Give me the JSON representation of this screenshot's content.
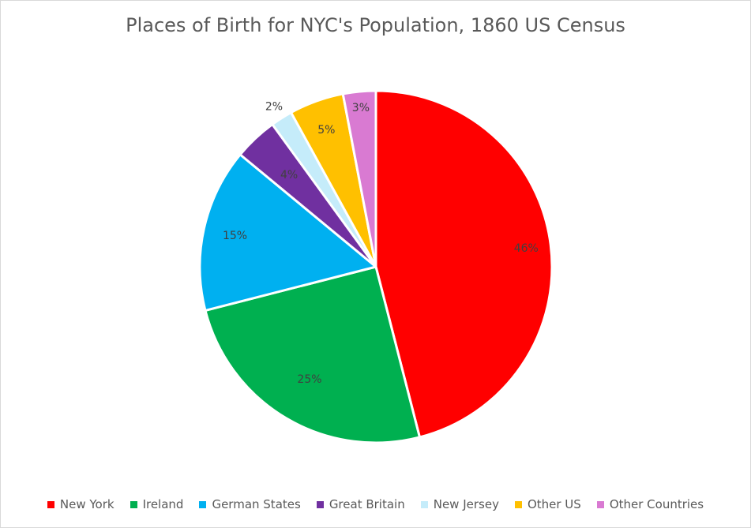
{
  "chart_data": {
    "type": "pie",
    "title": "Places of Birth for NYC's Population, 1860 US Census",
    "legend_position": "bottom",
    "categories": [
      "New York",
      "Ireland",
      "German States",
      "Great Britain",
      "New Jersey",
      "Other US",
      "Other Countries"
    ],
    "values": [
      46,
      25,
      15,
      4,
      2,
      5,
      3
    ],
    "data_labels": [
      "46%",
      "25%",
      "15%",
      "4%",
      "2%",
      "5%",
      "3%"
    ],
    "colors": [
      "#ff0000",
      "#00b050",
      "#00b0f0",
      "#7030a0",
      "#c5ecfa",
      "#ffc000",
      "#d97ad2"
    ]
  }
}
